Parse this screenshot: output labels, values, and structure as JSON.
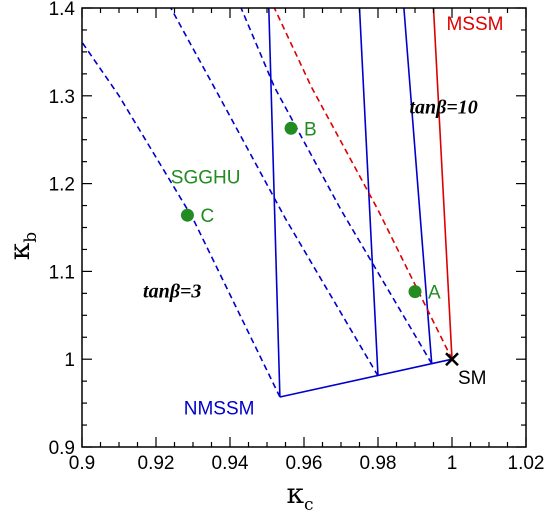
{
  "colors": {
    "frame": "#000000",
    "nmssm": "#0000cc",
    "mssm": "#dd0000",
    "sgghu": "#228b22",
    "points": "#228b22",
    "sm": "#000000"
  },
  "chart_data": {
    "type": "scatter",
    "title": "",
    "xlabel": "κ",
    "xlabel_sub": "c",
    "ylabel": "κ",
    "ylabel_sub": "b",
    "xlim": [
      0.9,
      1.02
    ],
    "ylim": [
      0.9,
      1.4
    ],
    "x_ticks": [
      0.9,
      0.92,
      0.94,
      0.96,
      0.98,
      1.0,
      1.02
    ],
    "x_tick_labels": [
      "0.9",
      "0.92",
      "0.94",
      "0.96",
      "0.98",
      "1",
      "1.02"
    ],
    "y_ticks": [
      0.9,
      1.0,
      1.1,
      1.2,
      1.3,
      1.4
    ],
    "y_tick_labels": [
      "0.9",
      "1",
      "1.1",
      "1.2",
      "1.3",
      "1.4"
    ],
    "grid": false,
    "points": [
      {
        "label": "A",
        "x": 0.99,
        "y": 1.077
      },
      {
        "label": "B",
        "x": 0.9565,
        "y": 1.263
      },
      {
        "label": "C",
        "x": 0.9285,
        "y": 1.164
      }
    ],
    "sm_point": {
      "label": "SM",
      "x": 1.0,
      "y": 1.0
    },
    "lines": [
      {
        "name": "NMSSM",
        "style": "solid",
        "color": "nmssm",
        "points": [
          [
            0.9535,
            0.957
          ],
          [
            1.0,
            1.0
          ]
        ]
      },
      {
        "name": "NMSSM",
        "style": "solid",
        "color": "nmssm",
        "points": [
          [
            0.9535,
            0.957
          ],
          [
            0.9505,
            1.4
          ]
        ]
      },
      {
        "name": "NMSSM",
        "style": "solid",
        "color": "nmssm",
        "points": [
          [
            0.98,
            0.981
          ],
          [
            0.975,
            1.4
          ]
        ]
      },
      {
        "name": "NMSSM",
        "style": "solid",
        "color": "nmssm",
        "points": [
          [
            0.9945,
            0.995
          ],
          [
            0.987,
            1.4
          ]
        ]
      },
      {
        "name": "MSSM",
        "style": "solid",
        "color": "mssm",
        "points": [
          [
            1.0,
            1.0
          ],
          [
            0.995,
            1.4
          ]
        ]
      },
      {
        "name": "MSSM",
        "style": "dashed",
        "color": "mssm",
        "points": [
          [
            1.0,
            1.0
          ],
          [
            0.98,
            1.17
          ],
          [
            0.962,
            1.31
          ],
          [
            0.952,
            1.4
          ]
        ]
      },
      {
        "name": "SGGHU",
        "style": "dashed",
        "color": "nmssm",
        "points": [
          [
            0.9535,
            0.957
          ],
          [
            0.93,
            1.16
          ],
          [
            0.91,
            1.3
          ],
          [
            0.9,
            1.361
          ]
        ]
      },
      {
        "name": "SGGHU",
        "style": "dashed",
        "color": "nmssm",
        "points": [
          [
            0.98,
            0.981
          ],
          [
            0.955,
            1.16
          ],
          [
            0.937,
            1.3
          ],
          [
            0.924,
            1.4
          ]
        ]
      },
      {
        "name": "SGGHU",
        "style": "dashed",
        "color": "nmssm",
        "points": [
          [
            0.9945,
            0.995
          ],
          [
            0.97,
            1.17
          ],
          [
            0.952,
            1.31
          ],
          [
            0.943,
            1.4
          ]
        ]
      }
    ],
    "annotations": [
      {
        "text": "MSSM",
        "color": "mssm",
        "font": "sans",
        "x": 0.9985,
        "y": 1.375
      },
      {
        "text": "tanβ=10",
        "color": "sm",
        "font": "serif",
        "x": 0.9885,
        "y": 1.28
      },
      {
        "text": "SGGHU",
        "color": "sgghu",
        "font": "sans",
        "x": 0.924,
        "y": 1.2
      },
      {
        "text": "tanβ=3",
        "color": "sm",
        "font": "serif",
        "x": 0.9165,
        "y": 1.07
      },
      {
        "text": "NMSSM",
        "color": "nmssm",
        "font": "sans",
        "x": 0.9275,
        "y": 0.937
      }
    ]
  }
}
